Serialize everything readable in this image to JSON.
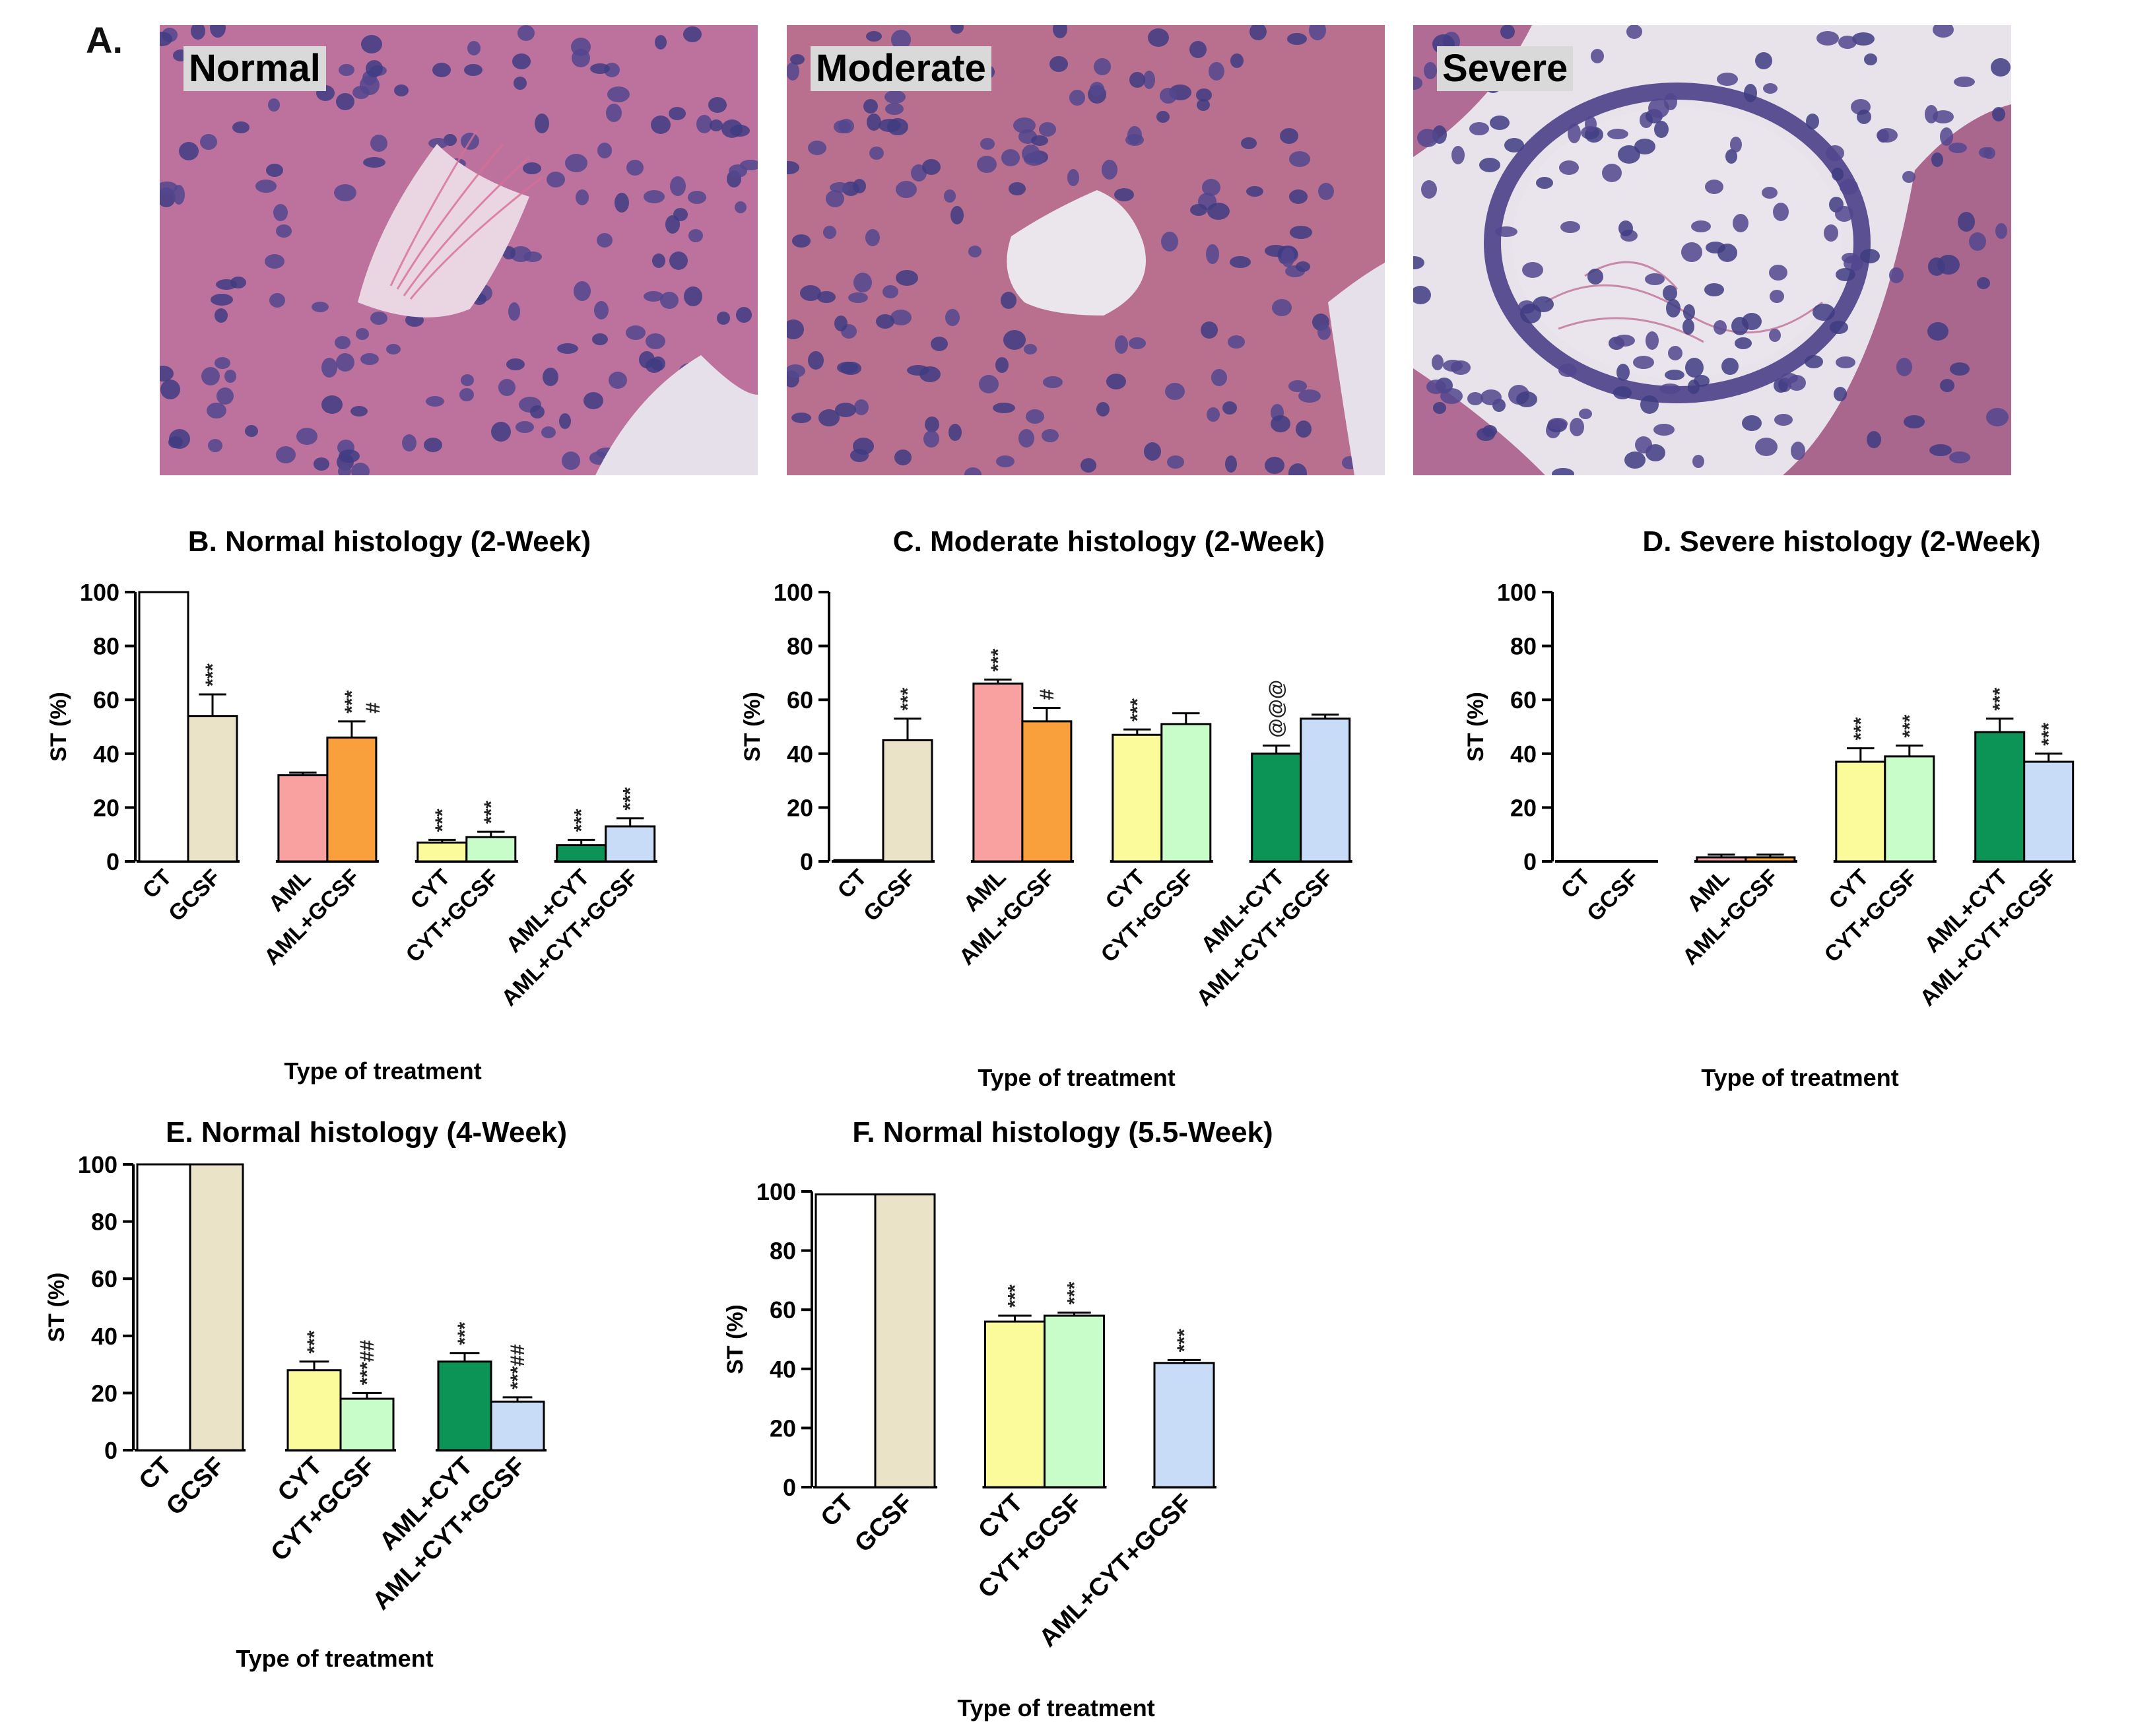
{
  "panel_a": {
    "letter": "A.",
    "images": [
      {
        "label": "Normal",
        "icon": "histology-normal-tubule"
      },
      {
        "label": "Moderate",
        "icon": "histology-moderate-tubule"
      },
      {
        "label": "Severe",
        "icon": "histology-severe-tubule"
      }
    ]
  },
  "colors": {
    "CT": "#ffffff",
    "GCSF": "#ebe3c8",
    "AML": "#f9a0a0",
    "AML+GCSF": "#f9a03c",
    "CYT": "#fbfb9c",
    "CYT+GCSF": "#c8fcc8",
    "AML+CYT": "#0b9455",
    "AML+CYT+GCSF": "#c8dcf8"
  },
  "chart_data": [
    {
      "type": "bar",
      "title": "B. Normal histology (2-Week)",
      "xlabel": "Type of treatment",
      "ylabel": "ST (%)",
      "ylim": [
        0,
        100
      ],
      "yticks": [
        0,
        20,
        40,
        60,
        80,
        100
      ],
      "categories": [
        "CT",
        "GCSF",
        "AML",
        "AML+GCSF",
        "CYT",
        "CYT+GCSF",
        "AML+CYT",
        "AML+CYT+GCSF"
      ],
      "groups": [
        2,
        2,
        2,
        2
      ],
      "values": [
        100,
        54,
        32,
        46,
        7,
        9,
        6,
        13
      ],
      "errors": [
        0,
        8,
        1,
        6,
        1,
        2,
        2,
        3
      ],
      "annotations": [
        "",
        "***",
        "",
        "***\n#",
        "***",
        "***",
        "***",
        "***"
      ]
    },
    {
      "type": "bar",
      "title": "C. Moderate histology (2-Week)",
      "xlabel": "Type of treatment",
      "ylabel": "ST (%)",
      "ylim": [
        0,
        100
      ],
      "yticks": [
        0,
        20,
        40,
        60,
        80,
        100
      ],
      "categories": [
        "CT",
        "GCSF",
        "AML",
        "AML+GCSF",
        "CYT",
        "CYT+GCSF",
        "AML+CYT",
        "AML+CYT+GCSF"
      ],
      "groups": [
        2,
        2,
        2,
        2
      ],
      "values": [
        0.5,
        45,
        66,
        52,
        47,
        51,
        40,
        53
      ],
      "errors": [
        0,
        8,
        1.5,
        5,
        2,
        4,
        3,
        1.5
      ],
      "annotations": [
        "",
        "***",
        "***",
        "#",
        "***",
        "",
        "@@@",
        ""
      ]
    },
    {
      "type": "bar",
      "title": "D. Severe histology (2-Week)",
      "xlabel": "Type of treatment",
      "ylabel": "ST (%)",
      "ylim": [
        0,
        100
      ],
      "yticks": [
        0,
        20,
        40,
        60,
        80,
        100
      ],
      "categories": [
        "CT",
        "GCSF",
        "AML",
        "AML+GCSF",
        "CYT",
        "CYT+GCSF",
        "AML+CYT",
        "AML+CYT+GCSF"
      ],
      "groups": [
        2,
        2,
        2,
        2
      ],
      "values": [
        0,
        0,
        1.5,
        1.5,
        37,
        39,
        48,
        37
      ],
      "errors": [
        0,
        0,
        1,
        1,
        5,
        4,
        5,
        3
      ],
      "annotations": [
        "",
        "",
        "",
        "",
        "***",
        "***",
        "***",
        "***"
      ]
    },
    {
      "type": "bar",
      "title": "E. Normal histology (4-Week)",
      "xlabel": "Type of treatment",
      "ylabel": "ST (%)",
      "ylim": [
        0,
        100
      ],
      "yticks": [
        0,
        20,
        40,
        60,
        80,
        100
      ],
      "categories": [
        "CT",
        "GCSF",
        "CYT",
        "CYT+GCSF",
        "AML+CYT",
        "AML+CYT+GCSF"
      ],
      "groups": [
        2,
        2,
        2
      ],
      "values": [
        100,
        100,
        28,
        18,
        31,
        17
      ],
      "errors": [
        0,
        0,
        3,
        2,
        3,
        1.5
      ],
      "annotations": [
        "",
        "",
        "***",
        "***##",
        "***",
        "***##"
      ]
    },
    {
      "type": "bar",
      "title": "F. Normal histology (5.5-Week)",
      "xlabel": "Type of treatment",
      "ylabel": "ST (%)",
      "ylim": [
        0,
        100
      ],
      "yticks": [
        0,
        20,
        40,
        60,
        80,
        100
      ],
      "categories": [
        "CT",
        "GCSF",
        "CYT",
        "CYT+GCSF",
        "AML+CYT+GCSF"
      ],
      "groups": [
        2,
        2,
        1
      ],
      "values": [
        99,
        99,
        56,
        58,
        42
      ],
      "errors": [
        0,
        0,
        2,
        1,
        1
      ],
      "annotations": [
        "",
        "",
        "***",
        "***",
        "***"
      ]
    }
  ]
}
